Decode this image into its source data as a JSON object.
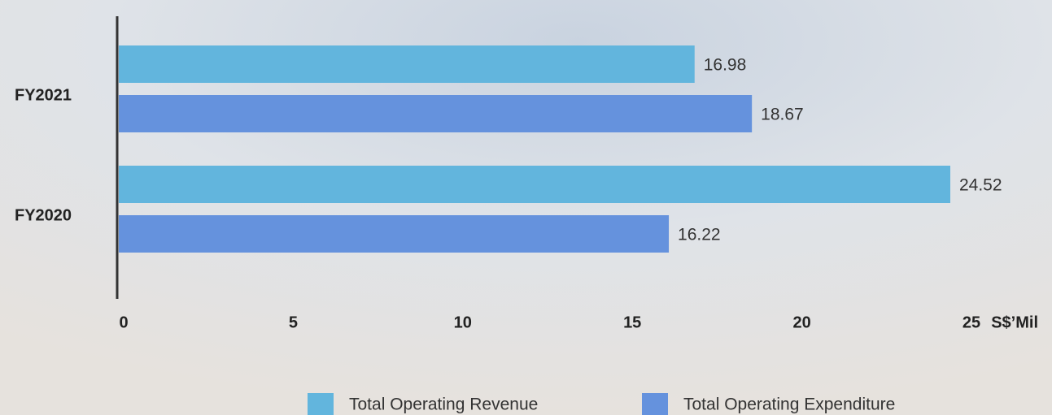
{
  "chart_data": {
    "type": "hbar",
    "categories": [
      "FY2021",
      "FY2020"
    ],
    "series": [
      {
        "name": "Total Operating Revenue",
        "color": "#62b5dd",
        "values": [
          16.98,
          24.52
        ]
      },
      {
        "name": "Total Operating Expenditure",
        "color": "#6592dd",
        "values": [
          18.67,
          16.22
        ]
      }
    ],
    "xlim": [
      0,
      25
    ],
    "xticks": [
      0,
      5,
      10,
      15,
      20,
      25
    ],
    "x_unit_label": "S$’Mil",
    "grid": false,
    "legend": "bottom"
  }
}
